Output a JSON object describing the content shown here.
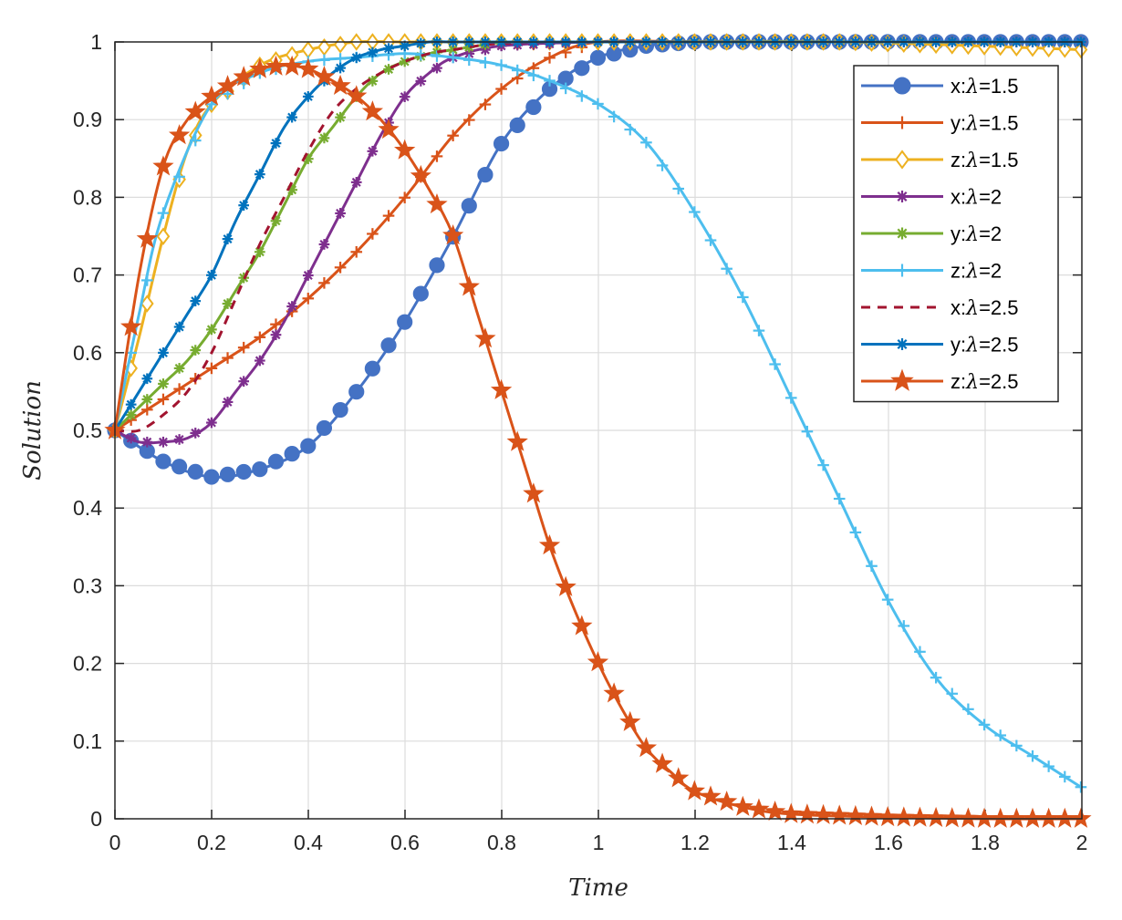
{
  "chart_data": {
    "type": "line",
    "title": "",
    "xlabel": "Time",
    "ylabel": "Solution",
    "xlim": [
      0,
      2
    ],
    "ylim": [
      0,
      1
    ],
    "xticks": [
      "0",
      "0.2",
      "0.4",
      "0.6",
      "0.8",
      "1",
      "1.2",
      "1.4",
      "1.6",
      "1.8",
      "2"
    ],
    "yticks": [
      "0",
      "0.1",
      "0.2",
      "0.3",
      "0.4",
      "0.5",
      "0.6",
      "0.7",
      "0.8",
      "0.9",
      "1"
    ],
    "grid": true,
    "legend_location": "top-right",
    "series": [
      {
        "name": "x:λ=1.5",
        "label_prefix": "x:",
        "label_lambda": "λ",
        "label_suffix": "=1.5",
        "color": "#4472C4",
        "marker_color": "#4472C4",
        "marker": "circle",
        "line": "solid",
        "x": [
          0,
          0.1,
          0.2,
          0.3,
          0.4,
          0.5,
          0.6,
          0.7,
          0.8,
          0.9,
          1.0,
          1.1,
          1.2,
          1.4,
          1.6,
          1.8,
          2.0
        ],
        "y": [
          0.5,
          0.46,
          0.44,
          0.45,
          0.48,
          0.55,
          0.64,
          0.75,
          0.87,
          0.94,
          0.98,
          0.995,
          1.0,
          1.0,
          1.0,
          1.0,
          1.0
        ]
      },
      {
        "name": "y:λ=1.5",
        "label_prefix": "y:",
        "label_lambda": "λ",
        "label_suffix": "=1.5",
        "color": "#D95319",
        "marker_color": "#D95319",
        "marker": "plus",
        "line": "solid",
        "x": [
          0,
          0.1,
          0.2,
          0.3,
          0.4,
          0.5,
          0.6,
          0.7,
          0.8,
          0.9,
          1.0,
          1.2,
          1.4,
          1.6,
          1.8,
          2.0
        ],
        "y": [
          0.5,
          0.54,
          0.58,
          0.62,
          0.67,
          0.73,
          0.8,
          0.88,
          0.94,
          0.98,
          1.0,
          1.0,
          1.0,
          1.0,
          1.0,
          1.0
        ]
      },
      {
        "name": "z:λ=1.5",
        "label_prefix": "z:",
        "label_lambda": "λ",
        "label_suffix": "=1.5",
        "color": "#EDB120",
        "marker_color": "#EDB120",
        "marker": "diamond",
        "line": "solid",
        "x": [
          0,
          0.05,
          0.1,
          0.15,
          0.2,
          0.3,
          0.4,
          0.5,
          0.6,
          0.8,
          1.0,
          1.5,
          2.0
        ],
        "y": [
          0.5,
          0.62,
          0.75,
          0.86,
          0.92,
          0.97,
          0.99,
          1.0,
          1.0,
          1.0,
          1.0,
          1.0,
          0.99
        ]
      },
      {
        "name": "x:λ=2",
        "label_prefix": "x:",
        "label_lambda": "λ",
        "label_suffix": "=2",
        "color": "#7E2F8E",
        "marker_color": "#7E2F8E",
        "marker": "asterisk",
        "line": "solid",
        "x": [
          0,
          0.05,
          0.1,
          0.15,
          0.2,
          0.25,
          0.3,
          0.35,
          0.4,
          0.45,
          0.5,
          0.55,
          0.6,
          0.65,
          0.7,
          0.8,
          1.0,
          1.2,
          1.4,
          1.6,
          1.8,
          2.0
        ],
        "y": [
          0.5,
          0.485,
          0.485,
          0.49,
          0.51,
          0.55,
          0.59,
          0.64,
          0.7,
          0.76,
          0.82,
          0.88,
          0.93,
          0.96,
          0.98,
          0.995,
          1.0,
          1.0,
          1.0,
          1.0,
          1.0,
          1.0
        ]
      },
      {
        "name": "y:λ=2",
        "label_prefix": "y:",
        "label_lambda": "λ",
        "label_suffix": "=2",
        "color": "#77AC30",
        "marker_color": "#77AC30",
        "marker": "asterisk",
        "line": "solid",
        "x": [
          0,
          0.05,
          0.1,
          0.15,
          0.2,
          0.25,
          0.3,
          0.35,
          0.4,
          0.45,
          0.5,
          0.55,
          0.6,
          0.65,
          0.7,
          0.8
        ],
        "y": [
          0.5,
          0.53,
          0.56,
          0.59,
          0.63,
          0.68,
          0.73,
          0.79,
          0.85,
          0.89,
          0.93,
          0.96,
          0.975,
          0.985,
          0.99,
          1.0
        ]
      },
      {
        "name": "z:λ=2",
        "label_prefix": "z:",
        "label_lambda": "λ",
        "label_suffix": "=2",
        "color": "#4DBEEE",
        "marker_color": "#4DBEEE",
        "marker": "plus",
        "line": "solid",
        "x": [
          0,
          0.05,
          0.1,
          0.2,
          0.3,
          0.4,
          0.5,
          0.6,
          0.7,
          0.8,
          0.9,
          1.0,
          1.1,
          1.2,
          1.3,
          1.4,
          1.5,
          1.6,
          1.7,
          1.8,
          1.9,
          2.0
        ],
        "y": [
          0.5,
          0.65,
          0.78,
          0.92,
          0.96,
          0.975,
          0.98,
          0.985,
          0.98,
          0.97,
          0.95,
          0.92,
          0.87,
          0.78,
          0.67,
          0.54,
          0.41,
          0.28,
          0.18,
          0.12,
          0.08,
          0.04
        ]
      },
      {
        "name": "x:λ=2.5",
        "label_prefix": "x:",
        "label_lambda": "λ",
        "label_suffix": "=2.5",
        "color": "#A2142F",
        "marker_color": "#A2142F",
        "marker": "none",
        "line": "dashed",
        "x": [
          0,
          0.05,
          0.1,
          0.15,
          0.2,
          0.25,
          0.3,
          0.35,
          0.4,
          0.45,
          0.5,
          0.55,
          0.6,
          0.65,
          0.7,
          0.8,
          1.0,
          1.5,
          2.0
        ],
        "y": [
          0.5,
          0.5,
          0.52,
          0.55,
          0.6,
          0.67,
          0.74,
          0.8,
          0.86,
          0.91,
          0.94,
          0.96,
          0.975,
          0.985,
          0.99,
          0.998,
          1.0,
          1.0,
          1.0
        ]
      },
      {
        "name": "y:λ=2.5",
        "label_prefix": "y:",
        "label_lambda": "λ",
        "label_suffix": "=2.5",
        "color": "#0072BD",
        "marker_color": "#0072BD",
        "marker": "asterisk",
        "line": "solid",
        "x": [
          0,
          0.05,
          0.1,
          0.15,
          0.2,
          0.25,
          0.3,
          0.35,
          0.4,
          0.45,
          0.5,
          0.55,
          0.6,
          0.65,
          0.7,
          0.8,
          1.0,
          1.2,
          1.4,
          1.6,
          1.8,
          2.0
        ],
        "y": [
          0.5,
          0.55,
          0.6,
          0.65,
          0.7,
          0.77,
          0.83,
          0.89,
          0.93,
          0.96,
          0.98,
          0.99,
          0.995,
          1.0,
          1.0,
          1.0,
          1.0,
          1.0,
          1.0,
          1.0,
          1.0,
          1.0
        ]
      },
      {
        "name": "z:λ=2.5",
        "label_prefix": "z:",
        "label_lambda": "λ",
        "label_suffix": "=2.5",
        "color": "#D95319",
        "marker_color": "#D95319",
        "marker": "star",
        "line": "solid",
        "x": [
          0,
          0.05,
          0.1,
          0.15,
          0.2,
          0.25,
          0.3,
          0.35,
          0.4,
          0.45,
          0.5,
          0.55,
          0.6,
          0.65,
          0.7,
          0.75,
          0.8,
          0.85,
          0.9,
          0.95,
          1.0,
          1.05,
          1.1,
          1.15,
          1.2,
          1.3,
          1.4,
          1.6,
          1.8,
          2.0
        ],
        "y": [
          0.5,
          0.7,
          0.84,
          0.9,
          0.93,
          0.95,
          0.965,
          0.97,
          0.965,
          0.95,
          0.93,
          0.9,
          0.86,
          0.81,
          0.75,
          0.65,
          0.55,
          0.45,
          0.35,
          0.27,
          0.2,
          0.14,
          0.09,
          0.06,
          0.035,
          0.015,
          0.006,
          0.002,
          0.0,
          0.0
        ]
      }
    ]
  }
}
